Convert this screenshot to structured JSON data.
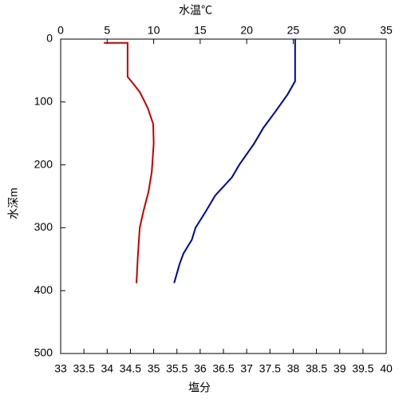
{
  "chart_data": {
    "type": "line",
    "x_label": "塩分",
    "x_label_color": "#c00000",
    "x2_label": "水温℃",
    "x2_label_color": "#0000a0",
    "y_label": "水深m",
    "xlim": [
      33,
      40
    ],
    "xticks": [
      33,
      33.5,
      34,
      34.5,
      35,
      35.5,
      36,
      36.5,
      37,
      37.5,
      38,
      38.5,
      39,
      39.5,
      40
    ],
    "x2lim": [
      0,
      35
    ],
    "x2ticks": [
      0,
      5,
      10,
      15,
      20,
      25,
      30,
      35
    ],
    "ylim": [
      0,
      500
    ],
    "yticks": [
      0,
      100,
      200,
      300,
      400,
      500
    ],
    "y_inverted": true,
    "series": [
      {
        "color": "#0000a0",
        "axis": "x2",
        "x": [
          25.2,
          25.2,
          24.4,
          23.1,
          21.8,
          20.8,
          19.2,
          18.4,
          16.6,
          15.6,
          14.5,
          14.1,
          13.2,
          12.8,
          12.2
        ],
        "y": [
          0,
          67,
          88,
          115,
          141,
          166,
          200,
          220,
          249,
          274,
          300,
          319,
          341,
          357,
          388
        ]
      },
      {
        "color": "#c00000",
        "axis": "x",
        "x": [
          33.93,
          34.44,
          34.44,
          34.53,
          34.7,
          34.87,
          34.99,
          35.0,
          34.96,
          34.89,
          34.78,
          34.7,
          34.66,
          34.63
        ],
        "y": [
          6,
          6,
          60,
          68,
          84,
          109,
          135,
          166,
          211,
          242,
          274,
          300,
          344,
          388
        ]
      }
    ]
  }
}
